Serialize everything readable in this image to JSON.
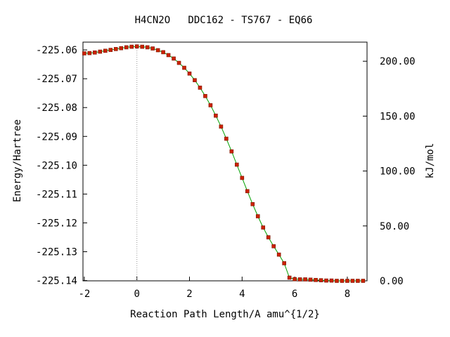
{
  "chart_data": {
    "type": "line",
    "title": "H4CN2O   DDC162 - TS767 - EQ66",
    "xlabel": "Reaction Path Length/A amu^{1/2}",
    "ylabel": "Energy/Hartree",
    "y2label": "kJ/mol",
    "xlim": [
      -2.05,
      8.75
    ],
    "ylim": [
      -225.1401,
      -225.0573
    ],
    "y2_reference_energy": -225.1401,
    "hartree_to_kjmol": 2625.5,
    "x_ticks": [
      -2,
      0,
      2,
      4,
      6,
      8
    ],
    "x_tick_labels": [
      "-2",
      "0",
      "2",
      "4",
      "6",
      "8"
    ],
    "y_ticks": [
      -225.06,
      -225.07,
      -225.08,
      -225.09,
      -225.1,
      -225.11,
      -225.12,
      -225.13,
      -225.14
    ],
    "y_tick_labels": [
      "-225.06",
      "-225.07",
      "-225.08",
      "-225.09",
      "-225.10",
      "-225.11",
      "-225.12",
      "-225.13",
      "-225.14"
    ],
    "y2_ticks": [
      0,
      50,
      100,
      150,
      200
    ],
    "y2_tick_labels": [
      "0.00",
      "50.00",
      "100.00",
      "150.00",
      "200.00"
    ],
    "reference_line_x": 0,
    "grid": false,
    "colors": {
      "line": "#00a000",
      "marker": "#cc2200",
      "axis": "#000000",
      "reference": "#999999"
    },
    "series": [
      {
        "x": [
          -2.0,
          -1.8,
          -1.6,
          -1.4,
          -1.2,
          -1.0,
          -0.8,
          -0.6,
          -0.4,
          -0.2,
          0.0,
          0.2,
          0.4,
          0.6,
          0.8,
          1.0,
          1.2,
          1.4,
          1.6,
          1.8,
          2.0,
          2.2,
          2.4,
          2.6,
          2.8,
          3.0,
          3.2,
          3.4,
          3.6,
          3.8,
          4.0,
          4.2,
          4.4,
          4.6,
          4.8,
          5.0,
          5.2,
          5.4,
          5.6,
          5.8,
          6.0,
          6.2,
          6.4,
          6.6,
          6.8,
          7.0,
          7.2,
          7.4,
          7.6,
          7.8,
          8.0,
          8.2,
          8.4,
          8.6
        ],
        "y": [
          -225.0612,
          -225.0611,
          -225.0609,
          -225.0606,
          -225.0603,
          -225.06,
          -225.0597,
          -225.0594,
          -225.0591,
          -225.0589,
          -225.0588,
          -225.0589,
          -225.0591,
          -225.0595,
          -225.0601,
          -225.0608,
          -225.0618,
          -225.063,
          -225.0645,
          -225.0662,
          -225.0682,
          -225.0705,
          -225.0731,
          -225.076,
          -225.0792,
          -225.0828,
          -225.0866,
          -225.0908,
          -225.0952,
          -225.0998,
          -225.1044,
          -225.109,
          -225.1135,
          -225.1177,
          -225.1216,
          -225.125,
          -225.1281,
          -225.131,
          -225.134,
          -225.139,
          -225.1395,
          -225.1396,
          -225.1396,
          -225.1397,
          -225.1398,
          -225.1399,
          -225.14,
          -225.14,
          -225.1401,
          -225.1401,
          -225.1401,
          -225.1401,
          -225.1401,
          -225.1401
        ]
      }
    ]
  }
}
